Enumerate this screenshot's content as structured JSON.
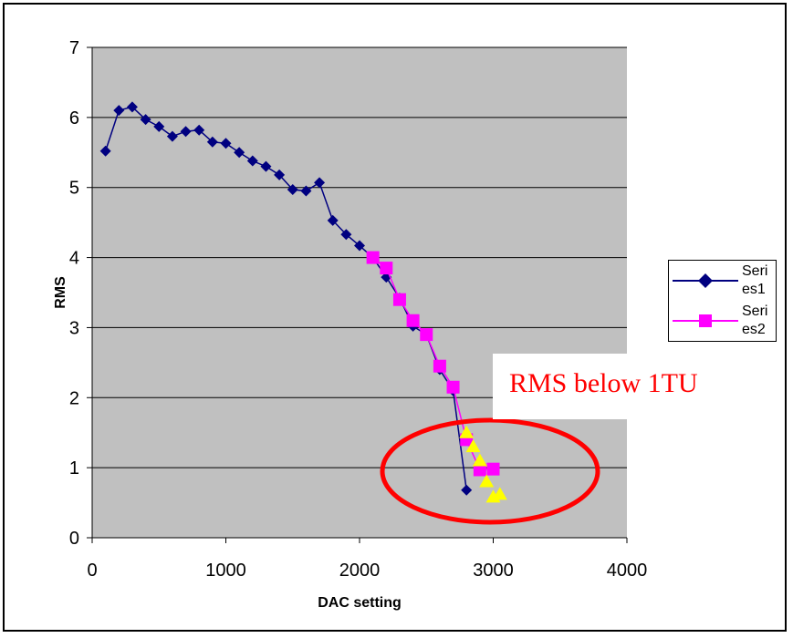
{
  "chart_data": {
    "type": "scatter",
    "title": "",
    "xlabel": "DAC setting",
    "ylabel": "RMS",
    "xlim": [
      0,
      4000
    ],
    "ylim": [
      0,
      7
    ],
    "xticks": [
      "0",
      "1000",
      "2000",
      "3000",
      "4000"
    ],
    "yticks": [
      "0",
      "1",
      "2",
      "3",
      "4",
      "5",
      "6",
      "7"
    ],
    "grid": "horizontal",
    "background": "#c0c0c0",
    "legend_position": "right",
    "series": [
      {
        "name": "Series1",
        "marker": "diamond",
        "color": "#000080",
        "line": true,
        "x": [
          100,
          200,
          300,
          400,
          500,
          600,
          700,
          800,
          900,
          1000,
          1100,
          1200,
          1300,
          1400,
          1500,
          1600,
          1700,
          1800,
          1900,
          2000,
          2100,
          2200,
          2300,
          2400,
          2500,
          2600,
          2700,
          2800
        ],
        "y": [
          5.52,
          6.1,
          6.15,
          5.97,
          5.87,
          5.73,
          5.8,
          5.82,
          5.65,
          5.63,
          5.5,
          5.38,
          5.3,
          5.18,
          4.97,
          4.95,
          5.07,
          4.53,
          4.33,
          4.17,
          4.0,
          3.72,
          3.42,
          3.02,
          2.9,
          2.4,
          2.1,
          0.68
        ]
      },
      {
        "name": "Series2",
        "marker": "square",
        "color": "#ff00ff",
        "line": true,
        "x": [
          2100,
          2200,
          2300,
          2400,
          2500,
          2600,
          2700,
          2800,
          2900,
          3000
        ],
        "y": [
          4.0,
          3.85,
          3.4,
          3.1,
          2.9,
          2.45,
          2.15,
          1.4,
          0.97,
          0.98
        ]
      },
      {
        "name": "",
        "marker": "triangle",
        "color": "#ffff00",
        "line": false,
        "x": [
          2800,
          2850,
          2900,
          2950,
          3000,
          3050
        ],
        "y": [
          1.5,
          1.3,
          1.1,
          0.8,
          0.58,
          0.62
        ]
      }
    ],
    "legend": [
      {
        "label": "Seri es1",
        "color": "#000080",
        "marker": "diamond"
      },
      {
        "label": "Seri es2",
        "color": "#ff00ff",
        "marker": "square"
      }
    ],
    "annotation": {
      "text": "RMS below 1TU",
      "color": "#ff0000",
      "shape": "ellipse",
      "ellipse_color": "#ff0000"
    }
  }
}
